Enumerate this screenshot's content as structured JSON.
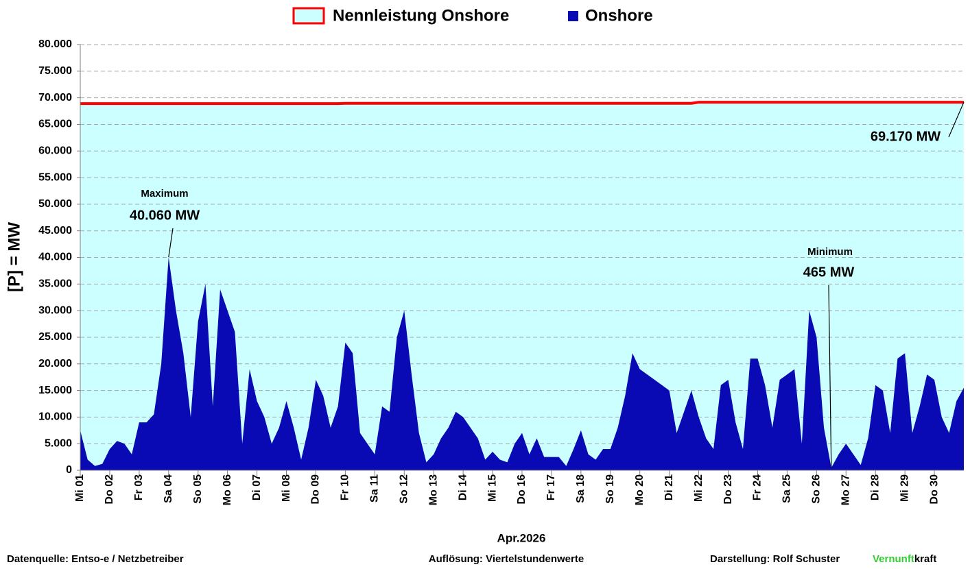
{
  "chart_data": {
    "type": "area",
    "legend": {
      "position": "top"
    },
    "grid": true,
    "y_label": "[P] = MW",
    "x_label": "Apr.2026",
    "xlim": [
      0,
      30
    ],
    "xticks": [
      {
        "value": 0,
        "label": "Mi 01"
      },
      {
        "value": 1,
        "label": "Do 02"
      },
      {
        "value": 2,
        "label": "Fr 03"
      },
      {
        "value": 3,
        "label": "Sa 04"
      },
      {
        "value": 4,
        "label": "So 05"
      },
      {
        "value": 5,
        "label": "Mo 06"
      },
      {
        "value": 6,
        "label": "Di 07"
      },
      {
        "value": 7,
        "label": "Mi 08"
      },
      {
        "value": 8,
        "label": "Do 09"
      },
      {
        "value": 9,
        "label": "Fr 10"
      },
      {
        "value": 10,
        "label": "Sa 11"
      },
      {
        "value": 11,
        "label": "So 12"
      },
      {
        "value": 12,
        "label": "Mo 13"
      },
      {
        "value": 13,
        "label": "Di 14"
      },
      {
        "value": 14,
        "label": "Mi 15"
      },
      {
        "value": 15,
        "label": "Do 16"
      },
      {
        "value": 16,
        "label": "Fr 17"
      },
      {
        "value": 17,
        "label": "Sa 18"
      },
      {
        "value": 18,
        "label": "So 19"
      },
      {
        "value": 19,
        "label": "Mo 20"
      },
      {
        "value": 20,
        "label": "Di 21"
      },
      {
        "value": 21,
        "label": "Mi 22"
      },
      {
        "value": 22,
        "label": "Do 23"
      },
      {
        "value": 23,
        "label": "Fr 24"
      },
      {
        "value": 24,
        "label": "Sa 25"
      },
      {
        "value": 25,
        "label": "So 26"
      },
      {
        "value": 26,
        "label": "Mo 27"
      },
      {
        "value": 27,
        "label": "Di 28"
      },
      {
        "value": 28,
        "label": "Mi 29"
      },
      {
        "value": 29,
        "label": "Do 30"
      }
    ],
    "ylim": [
      0,
      80000
    ],
    "yticks": [
      0,
      {
        "value": 5000,
        "label": "5.000"
      },
      {
        "value": 10000,
        "label": "10.000"
      },
      {
        "value": 15000,
        "label": "15.000"
      },
      {
        "value": 20000,
        "label": "20.000"
      },
      {
        "value": 25000,
        "label": "25.000"
      },
      {
        "value": 30000,
        "label": "30.000"
      },
      {
        "value": 35000,
        "label": "35.000"
      },
      {
        "value": 40000,
        "label": "40.000"
      },
      {
        "value": 45000,
        "label": "45.000"
      },
      {
        "value": 50000,
        "label": "50.000"
      },
      {
        "value": 55000,
        "label": "55.000"
      },
      {
        "value": 60000,
        "label": "60.000"
      },
      {
        "value": 65000,
        "label": "65.000"
      },
      {
        "value": 70000,
        "label": "70.000"
      },
      {
        "value": 75000,
        "label": "75.000"
      },
      {
        "value": 80000,
        "label": "80.000"
      }
    ],
    "x": [
      0,
      0.25,
      0.5,
      0.75,
      1,
      1.25,
      1.5,
      1.75,
      2,
      2.25,
      2.5,
      2.75,
      3,
      3.25,
      3.5,
      3.75,
      4,
      4.25,
      4.5,
      4.75,
      5,
      5.25,
      5.5,
      5.75,
      6,
      6.25,
      6.5,
      6.75,
      7,
      7.25,
      7.5,
      7.75,
      8,
      8.25,
      8.5,
      8.75,
      9,
      9.25,
      9.5,
      9.75,
      10,
      10.25,
      10.5,
      10.75,
      11,
      11.25,
      11.5,
      11.75,
      12,
      12.25,
      12.5,
      12.75,
      13,
      13.25,
      13.5,
      13.75,
      14,
      14.25,
      14.5,
      14.75,
      15,
      15.25,
      15.5,
      15.75,
      16,
      16.25,
      16.5,
      16.75,
      17,
      17.25,
      17.5,
      17.75,
      18,
      18.25,
      18.5,
      18.75,
      19,
      19.25,
      19.5,
      19.75,
      20,
      20.25,
      20.5,
      20.75,
      21,
      21.25,
      21.5,
      21.75,
      22,
      22.25,
      22.5,
      22.75,
      23,
      23.25,
      23.5,
      23.75,
      24,
      24.25,
      24.5,
      24.75,
      25,
      25.25,
      25.5,
      25.75,
      26,
      26.25,
      26.5,
      26.75,
      27,
      27.25,
      27.5,
      27.75,
      28,
      28.25,
      28.5,
      28.75,
      29,
      29.25,
      29.5,
      29.75,
      30
    ],
    "series": [
      {
        "name": "Nennleistung Onshore",
        "color": "#ff0000",
        "fill": "#ccffff",
        "values": [
          68900,
          68900,
          68900,
          68900,
          68900,
          68900,
          68900,
          68900,
          68900,
          68900,
          68900,
          68900,
          68900,
          68900,
          68900,
          68900,
          68900,
          68900,
          68900,
          68900,
          68900,
          68900,
          68900,
          68900,
          68900,
          68900,
          68900,
          68900,
          68900,
          68900,
          68900,
          68900,
          68900,
          68900,
          68900,
          68900,
          68950,
          68950,
          68950,
          68950,
          68950,
          68950,
          68950,
          68950,
          68950,
          68950,
          68950,
          68950,
          68950,
          68950,
          68950,
          68950,
          68950,
          68950,
          68950,
          68950,
          68950,
          68950,
          68950,
          68950,
          68950,
          68950,
          68950,
          68950,
          68950,
          68950,
          68950,
          68950,
          68950,
          68950,
          68950,
          68950,
          68950,
          68950,
          68950,
          68950,
          68950,
          68950,
          68950,
          68950,
          68950,
          68950,
          68950,
          68950,
          69170,
          69170,
          69170,
          69170,
          69170,
          69170,
          69170,
          69170,
          69170,
          69170,
          69170,
          69170,
          69170,
          69170,
          69170,
          69170,
          69170,
          69170,
          69170,
          69170,
          69170,
          69170,
          69170,
          69170,
          69170,
          69170,
          69170,
          69170,
          69170,
          69170,
          69170,
          69170,
          69170,
          69170,
          69170,
          69170,
          69170
        ]
      },
      {
        "name": "Onshore",
        "color": "#0a0ab4",
        "values": [
          7500,
          2000,
          800,
          1200,
          4000,
          5500,
          5000,
          3000,
          9000,
          9000,
          10500,
          20000,
          40060,
          30000,
          22000,
          10000,
          28000,
          35000,
          12000,
          34000,
          30000,
          26000,
          5000,
          19000,
          13000,
          10000,
          5000,
          8000,
          13000,
          8000,
          2000,
          8000,
          17000,
          14000,
          8000,
          12000,
          24000,
          22000,
          7000,
          5000,
          3000,
          12000,
          11000,
          25000,
          30000,
          18000,
          7000,
          1500,
          3000,
          6000,
          8000,
          11000,
          10000,
          8000,
          6000,
          2000,
          3500,
          2000,
          1500,
          5000,
          7000,
          3000,
          6000,
          2500,
          2500,
          2500,
          800,
          4000,
          7500,
          3000,
          2000,
          4000,
          4000,
          8000,
          14000,
          22000,
          19000,
          18000,
          17000,
          16000,
          15000,
          7000,
          11000,
          15000,
          10000,
          6000,
          4000,
          16000,
          17000,
          9000,
          4000,
          21000,
          21000,
          16000,
          8000,
          17000,
          18000,
          19000,
          5000,
          30000,
          25000,
          8000,
          465,
          3000,
          5000,
          3000,
          1000,
          6000,
          16000,
          15000,
          7000,
          21000,
          22000,
          7000,
          12000,
          18000,
          17000,
          10000,
          7000,
          13000,
          15500
        ]
      }
    ],
    "annotations": [
      {
        "label": "Maximum",
        "text": "40.060 MW",
        "x": 3,
        "value": 40060
      },
      {
        "label": "Minimum",
        "text": "465 MW",
        "x": 25.5,
        "value": 465
      },
      {
        "text": "69.170 MW",
        "x": 30,
        "value": 69170
      }
    ],
    "footer": {
      "source": "Datenquelle:  Entso-e  / Netzbetreiber",
      "resolution": "Auflösung: Viertelstundenwerte",
      "author": "Darstellung:  Rolf Schuster",
      "brand_green": "Vernunft",
      "brand_black": "kraft"
    }
  }
}
